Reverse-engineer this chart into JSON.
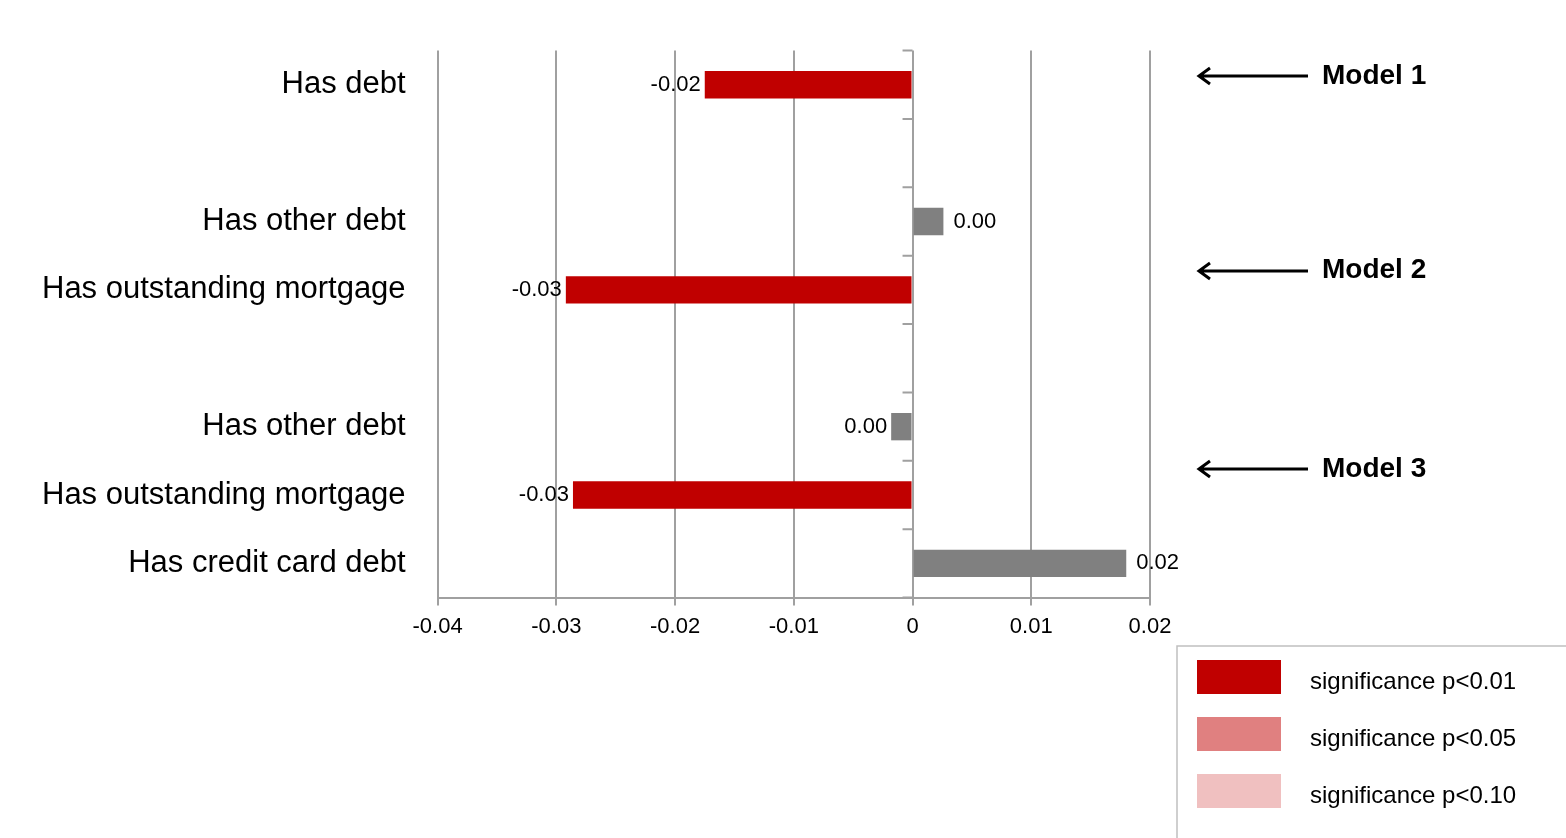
{
  "chart_data": {
    "type": "bar",
    "orientation": "horizontal",
    "stacked": true,
    "categories": [
      "Has debt",
      null,
      "Has other debt",
      "Has outstanding mortgage",
      null,
      "Has other debt",
      "Has outstanding mortgage",
      "Has credit card debt"
    ],
    "series": [
      {
        "name": "significance p<0.01",
        "color": "#c00000",
        "values": [
          -0.0175,
          null,
          null,
          -0.0292,
          null,
          null,
          -0.0286,
          null
        ],
        "value_labels": [
          "-0.02",
          null,
          null,
          "-0.03",
          null,
          null,
          "-0.03",
          null
        ]
      },
      {
        "name": "significance p<0.05",
        "color": "#e08080",
        "values": [
          null,
          null,
          null,
          null,
          null,
          null,
          null,
          null
        ]
      },
      {
        "name": "significance p<0.10",
        "color": "#f0c0c0",
        "values": [
          null,
          null,
          null,
          null,
          null,
          null,
          null,
          null
        ]
      },
      {
        "color": "#808080",
        "values": [
          null,
          null,
          0.0026,
          null,
          null,
          -0.0018,
          null,
          0.018
        ],
        "value_labels": [
          null,
          null,
          "0.00",
          null,
          null,
          "0.00",
          null,
          "0.02"
        ]
      }
    ],
    "xlim": [
      -0.04,
      0.02
    ],
    "xticks": [
      -0.04,
      -0.03,
      -0.02,
      -0.01,
      0,
      0.01,
      0.02
    ],
    "grid": "x",
    "legend": "bottom right",
    "annotations": [
      "Model 1",
      "Model 2",
      "Model 3"
    ]
  }
}
